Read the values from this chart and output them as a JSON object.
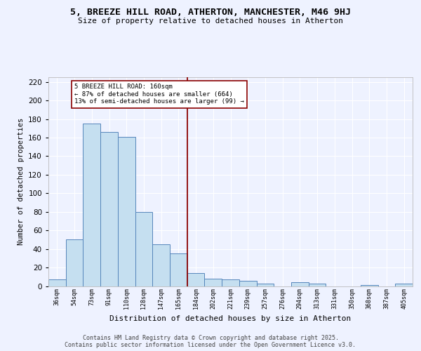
{
  "title1": "5, BREEZE HILL ROAD, ATHERTON, MANCHESTER, M46 9HJ",
  "title2": "Size of property relative to detached houses in Atherton",
  "xlabel": "Distribution of detached houses by size in Atherton",
  "ylabel": "Number of detached properties",
  "bar_labels": [
    "36sqm",
    "54sqm",
    "73sqm",
    "91sqm",
    "110sqm",
    "128sqm",
    "147sqm",
    "165sqm",
    "184sqm",
    "202sqm",
    "221sqm",
    "239sqm",
    "257sqm",
    "276sqm",
    "294sqm",
    "313sqm",
    "331sqm",
    "350sqm",
    "368sqm",
    "387sqm",
    "405sqm"
  ],
  "bar_values": [
    7,
    50,
    175,
    166,
    161,
    80,
    45,
    35,
    14,
    8,
    7,
    6,
    3,
    0,
    4,
    3,
    0,
    0,
    1,
    0,
    3
  ],
  "bar_color": "#c5dff0",
  "bar_edge_color": "#5585bb",
  "background_color": "#eef2ff",
  "grid_color": "#ffffff",
  "vline_x": 7.5,
  "vline_color": "#8b0000",
  "annotation_text": "5 BREEZE HILL ROAD: 160sqm\n← 87% of detached houses are smaller (664)\n13% of semi-detached houses are larger (99) →",
  "annotation_box_color": "#ffffff",
  "annotation_border_color": "#8b0000",
  "ylim": [
    0,
    225
  ],
  "yticks": [
    0,
    20,
    40,
    60,
    80,
    100,
    120,
    140,
    160,
    180,
    200,
    220
  ],
  "footer": "Contains HM Land Registry data © Crown copyright and database right 2025.\nContains public sector information licensed under the Open Government Licence v3.0."
}
